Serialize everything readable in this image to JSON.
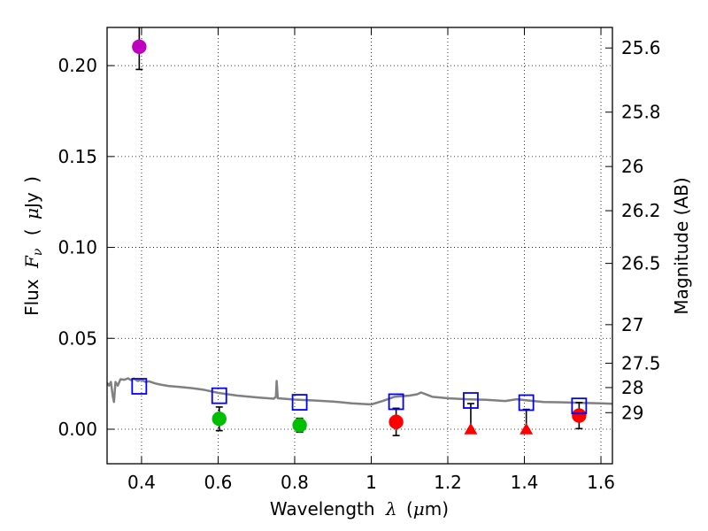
{
  "chart_data": {
    "type": "scatter",
    "xlabel": {
      "prefix": "Wavelength",
      "symbol": "λ",
      "unit_open": "(",
      "unit_mu": "μ",
      "unit_rest": "m)"
    },
    "ylabel": {
      "prefix": "Flux",
      "symbol": "F",
      "sub": "ν",
      "unit_open": "(",
      "unit_mu": "μ",
      "unit_rest": "Jy",
      "unit_close": ")"
    },
    "ylabel_right": "Magnitude (AB)",
    "xlim": [
      0.31,
      1.63
    ],
    "ylim": [
      -0.019,
      0.221
    ],
    "grid": true,
    "x_ticks": [
      {
        "value": 0.4,
        "label": "0.4"
      },
      {
        "value": 0.6,
        "label": "0.6"
      },
      {
        "value": 0.8,
        "label": "0.8"
      },
      {
        "value": 1.0,
        "label": "1"
      },
      {
        "value": 1.2,
        "label": "1.2"
      },
      {
        "value": 1.4,
        "label": "1.4"
      },
      {
        "value": 1.6,
        "label": "1.6"
      }
    ],
    "y_ticks": [
      {
        "value": 0.0,
        "label": "0.00"
      },
      {
        "value": 0.05,
        "label": "0.05"
      },
      {
        "value": 0.1,
        "label": "0.10"
      },
      {
        "value": 0.15,
        "label": "0.15"
      },
      {
        "value": 0.2,
        "label": "0.20"
      }
    ],
    "right_ticks": [
      {
        "flux": 0.2097,
        "label": "25.6"
      },
      {
        "flux": 0.1744,
        "label": "25.8"
      },
      {
        "flux": 0.1445,
        "label": "26"
      },
      {
        "flux": 0.1202,
        "label": "26.2"
      },
      {
        "flux": 0.0912,
        "label": "26.5"
      },
      {
        "flux": 0.0575,
        "label": "27"
      },
      {
        "flux": 0.0363,
        "label": "27.5"
      },
      {
        "flux": 0.0229,
        "label": "28"
      },
      {
        "flux": 0.0091,
        "label": "29"
      }
    ],
    "series": [
      {
        "name": "detection-uv",
        "marker": "circle",
        "color": "#bf00bf",
        "points": [
          {
            "x": 0.394,
            "y": 0.2104,
            "err": 0.0125
          }
        ]
      },
      {
        "name": "detection-optical",
        "marker": "circle",
        "color": "#00bf00",
        "points": [
          {
            "x": 0.603,
            "y": 0.0057,
            "err": 0.0065
          },
          {
            "x": 0.813,
            "y": 0.0022,
            "err": 0.0038
          }
        ]
      },
      {
        "name": "detection-nir",
        "marker": "circle",
        "color": "#ff0000",
        "points": [
          {
            "x": 1.065,
            "y": 0.004,
            "err": 0.0075
          },
          {
            "x": 1.543,
            "y": 0.0075,
            "err": 0.0072
          }
        ]
      },
      {
        "name": "upper-limits",
        "marker": "triangle",
        "color": "#ff0000",
        "points": [
          {
            "x": 1.26,
            "y": 0.0001,
            "err_up": 0.014
          },
          {
            "x": 1.405,
            "y": 0.0001,
            "err_up": 0.0108
          }
        ]
      },
      {
        "name": "model-photometry",
        "marker": "square",
        "color": "#0000ff",
        "points": [
          {
            "x": 0.394,
            "y": 0.0236
          },
          {
            "x": 0.603,
            "y": 0.0184
          },
          {
            "x": 0.813,
            "y": 0.0148
          },
          {
            "x": 1.065,
            "y": 0.0151
          },
          {
            "x": 1.26,
            "y": 0.0158
          },
          {
            "x": 1.405,
            "y": 0.0146
          },
          {
            "x": 1.543,
            "y": 0.0128
          }
        ]
      }
    ],
    "sed_model": {
      "color": "#808080",
      "points": [
        [
          0.31,
          0.0255
        ],
        [
          0.315,
          0.024
        ],
        [
          0.32,
          0.026
        ],
        [
          0.325,
          0.018
        ],
        [
          0.328,
          0.015
        ],
        [
          0.332,
          0.026
        ],
        [
          0.338,
          0.024
        ],
        [
          0.345,
          0.0275
        ],
        [
          0.355,
          0.0272
        ],
        [
          0.365,
          0.028
        ],
        [
          0.372,
          0.027
        ],
        [
          0.38,
          0.0279
        ],
        [
          0.39,
          0.0265
        ],
        [
          0.4,
          0.0272
        ],
        [
          0.41,
          0.026
        ],
        [
          0.42,
          0.0263
        ],
        [
          0.435,
          0.0252
        ],
        [
          0.45,
          0.0245
        ],
        [
          0.47,
          0.0238
        ],
        [
          0.5,
          0.0232
        ],
        [
          0.53,
          0.0226
        ],
        [
          0.56,
          0.0218
        ],
        [
          0.6,
          0.02
        ],
        [
          0.65,
          0.0185
        ],
        [
          0.7,
          0.0175
        ],
        [
          0.745,
          0.0168
        ],
        [
          0.751,
          0.0178
        ],
        [
          0.753,
          0.0265
        ],
        [
          0.756,
          0.017
        ],
        [
          0.8,
          0.0163
        ],
        [
          0.85,
          0.0158
        ],
        [
          0.9,
          0.0152
        ],
        [
          0.95,
          0.0142
        ],
        [
          1.0,
          0.0136
        ],
        [
          1.03,
          0.0155
        ],
        [
          1.06,
          0.0178
        ],
        [
          1.08,
          0.0182
        ],
        [
          1.1,
          0.0185
        ],
        [
          1.12,
          0.0192
        ],
        [
          1.13,
          0.0202
        ],
        [
          1.14,
          0.0194
        ],
        [
          1.16,
          0.0178
        ],
        [
          1.2,
          0.017
        ],
        [
          1.25,
          0.0165
        ],
        [
          1.3,
          0.0162
        ],
        [
          1.35,
          0.0155
        ],
        [
          1.38,
          0.0165
        ],
        [
          1.41,
          0.0158
        ],
        [
          1.45,
          0.015
        ],
        [
          1.5,
          0.0148
        ],
        [
          1.55,
          0.0145
        ],
        [
          1.6,
          0.0142
        ],
        [
          1.63,
          0.014
        ]
      ]
    }
  }
}
